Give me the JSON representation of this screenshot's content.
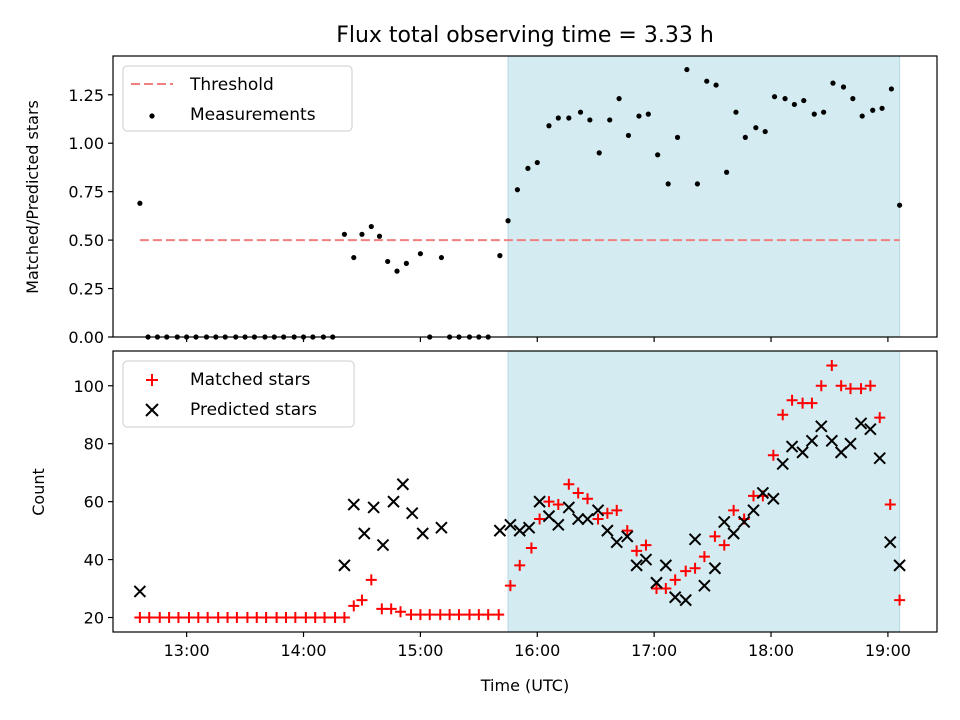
{
  "title": "Flux total observing time = 3.33 h",
  "chart_data": [
    {
      "type": "scatter",
      "ylabel": "Matched/Predicted stars",
      "ylim": [
        0,
        1.45
      ],
      "xlim": [
        12.37,
        19.42
      ],
      "yticks": [
        0,
        0.25,
        0.5,
        0.75,
        1.0,
        1.25
      ],
      "ytick_labels": [
        "0.00",
        "0.25",
        "0.50",
        "0.75",
        "1.00",
        "1.25"
      ],
      "xticks": [
        13,
        14,
        15,
        16,
        17,
        18,
        19
      ],
      "highlight_span": {
        "from": 15.75,
        "to": 19.1,
        "color": "#d4ebf1"
      },
      "legend": {
        "loc": "upper left",
        "entries": [
          "Threshold",
          "Measurements"
        ]
      },
      "threshold": {
        "name": "Threshold",
        "y": 0.5,
        "from": 12.6,
        "to": 19.1,
        "color": "#f08080"
      },
      "measurements": {
        "name": "Measurements",
        "x": [
          12.6,
          12.67,
          12.75,
          12.83,
          12.92,
          13.0,
          13.08,
          13.17,
          13.25,
          13.33,
          13.42,
          13.5,
          13.58,
          13.67,
          13.75,
          13.83,
          13.92,
          14.0,
          14.08,
          14.17,
          14.25,
          14.35,
          14.43,
          14.5,
          14.58,
          14.65,
          14.72,
          14.8,
          14.88,
          15.0,
          15.08,
          15.18,
          15.25,
          15.33,
          15.42,
          15.5,
          15.58,
          15.68,
          15.75,
          15.83,
          15.92,
          16.0,
          16.1,
          16.18,
          16.27,
          16.37,
          16.45,
          16.53,
          16.62,
          16.7,
          16.78,
          16.87,
          16.95,
          17.03,
          17.12,
          17.2,
          17.28,
          17.37,
          17.45,
          17.53,
          17.62,
          17.7,
          17.78,
          17.87,
          17.95,
          18.03,
          18.12,
          18.2,
          18.28,
          18.37,
          18.45,
          18.53,
          18.62,
          18.7,
          18.78,
          18.87,
          18.95,
          19.03,
          19.1
        ],
        "y": [
          0.69,
          0.0,
          0.0,
          0.0,
          0.0,
          0.0,
          0.0,
          0.0,
          0.0,
          0.0,
          0.0,
          0.0,
          0.0,
          0.0,
          0.0,
          0.0,
          0.0,
          0.0,
          0.0,
          0.0,
          0.0,
          0.53,
          0.41,
          0.53,
          0.57,
          0.52,
          0.39,
          0.34,
          0.38,
          0.43,
          0.0,
          0.41,
          0.0,
          0.0,
          0.0,
          0.0,
          0.0,
          0.42,
          0.6,
          0.76,
          0.87,
          0.9,
          1.09,
          1.13,
          1.13,
          1.16,
          1.12,
          0.95,
          1.12,
          1.23,
          1.04,
          1.14,
          1.15,
          0.94,
          0.79,
          1.03,
          1.38,
          0.79,
          1.32,
          1.3,
          0.85,
          1.16,
          1.03,
          1.08,
          1.06,
          1.24,
          1.23,
          1.2,
          1.22,
          1.15,
          1.16,
          1.31,
          1.29,
          1.23,
          1.14,
          1.17,
          1.18,
          1.28,
          0.68
        ]
      }
    },
    {
      "type": "scatter",
      "xlabel": "Time (UTC)",
      "ylabel": "Count",
      "ylim": [
        15,
        112
      ],
      "xlim": [
        12.37,
        19.42
      ],
      "yticks": [
        20,
        40,
        60,
        80,
        100
      ],
      "ytick_labels": [
        "20",
        "40",
        "60",
        "80",
        "100"
      ],
      "xticks": [
        13,
        14,
        15,
        16,
        17,
        18,
        19
      ],
      "xtick_labels": [
        "13:00",
        "14:00",
        "15:00",
        "16:00",
        "17:00",
        "18:00",
        "19:00"
      ],
      "highlight_span": {
        "from": 15.75,
        "to": 19.1,
        "color": "#d4ebf1"
      },
      "legend": {
        "loc": "upper left",
        "entries": [
          "Matched stars",
          "Predicted stars"
        ]
      },
      "series": [
        {
          "name": "Matched stars",
          "marker": "plus",
          "color": "#ff0000",
          "x": [
            12.6,
            12.68,
            12.77,
            12.85,
            12.93,
            13.02,
            13.1,
            13.18,
            13.27,
            13.35,
            13.43,
            13.52,
            13.6,
            13.68,
            13.77,
            13.85,
            13.93,
            14.02,
            14.1,
            14.18,
            14.27,
            14.35,
            14.43,
            14.5,
            14.58,
            14.67,
            14.75,
            14.83,
            14.92,
            15.0,
            15.08,
            15.17,
            15.25,
            15.33,
            15.42,
            15.5,
            15.58,
            15.67,
            15.77,
            15.85,
            15.95,
            16.02,
            16.1,
            16.18,
            16.27,
            16.35,
            16.43,
            16.52,
            16.6,
            16.68,
            16.77,
            16.85,
            16.93,
            17.02,
            17.1,
            17.18,
            17.27,
            17.35,
            17.43,
            17.52,
            17.6,
            17.68,
            17.77,
            17.85,
            17.93,
            18.02,
            18.1,
            18.18,
            18.27,
            18.35,
            18.43,
            18.52,
            18.6,
            18.68,
            18.77,
            18.85,
            18.93,
            19.02,
            19.1
          ],
          "y": [
            20,
            20,
            20,
            20,
            20,
            20,
            20,
            20,
            20,
            20,
            20,
            20,
            20,
            20,
            20,
            20,
            20,
            20,
            20,
            20,
            20,
            20,
            24,
            26,
            33,
            23,
            23,
            22,
            21,
            21,
            21,
            21,
            21,
            21,
            21,
            21,
            21,
            21,
            31,
            38,
            44,
            54,
            60,
            59,
            66,
            63,
            61,
            54,
            56,
            57,
            50,
            43,
            45,
            30,
            30,
            33,
            36,
            37,
            41,
            48,
            45,
            57,
            54,
            62,
            62,
            76,
            90,
            95,
            94,
            94,
            100,
            107,
            100,
            99,
            99,
            100,
            89,
            59,
            26
          ]
        },
        {
          "name": "Predicted stars",
          "marker": "x",
          "color": "#000000",
          "x": [
            12.6,
            14.35,
            14.43,
            14.52,
            14.6,
            14.68,
            14.77,
            14.85,
            14.93,
            15.02,
            15.18,
            15.68,
            15.77,
            15.85,
            15.93,
            16.02,
            16.1,
            16.18,
            16.27,
            16.35,
            16.43,
            16.52,
            16.6,
            16.68,
            16.77,
            16.85,
            16.93,
            17.02,
            17.1,
            17.18,
            17.27,
            17.35,
            17.43,
            17.52,
            17.6,
            17.68,
            17.77,
            17.85,
            17.93,
            18.02,
            18.1,
            18.18,
            18.27,
            18.35,
            18.43,
            18.52,
            18.6,
            18.68,
            18.77,
            18.85,
            18.93,
            19.02,
            19.1
          ],
          "y": [
            29,
            38,
            59,
            49,
            58,
            45,
            60,
            66,
            56,
            49,
            51,
            50,
            52,
            50,
            51,
            60,
            55,
            52,
            58,
            54,
            54,
            57,
            50,
            46,
            48,
            38,
            40,
            32,
            38,
            27,
            26,
            47,
            31,
            37,
            53,
            49,
            53,
            57,
            63,
            61,
            73,
            79,
            77,
            81,
            86,
            81,
            77,
            80,
            87,
            85,
            75,
            46,
            38
          ]
        }
      ]
    }
  ]
}
